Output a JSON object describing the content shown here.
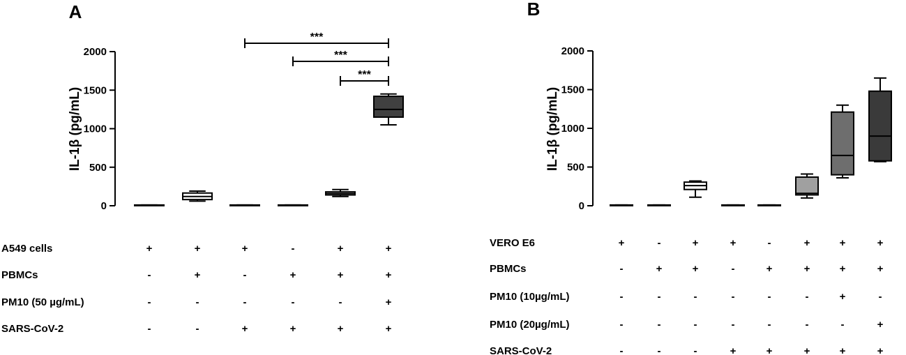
{
  "chart_data": [
    {
      "panel": "A",
      "type": "box",
      "ylabel": "IL-1β (pg/mL)",
      "ylim": [
        0,
        2000
      ],
      "yticks": [
        "0",
        "500",
        "1000",
        "1500",
        "2000"
      ],
      "groups": [
        {
          "min": 5,
          "q1": 5,
          "median": 8,
          "q3": 10,
          "max": 10,
          "fill": "#ffffff"
        },
        {
          "min": 60,
          "q1": 80,
          "median": 120,
          "q3": 165,
          "max": 190,
          "fill": "#ffffff"
        },
        {
          "min": 5,
          "q1": 5,
          "median": 8,
          "q3": 10,
          "max": 10,
          "fill": "#ffffff"
        },
        {
          "min": 5,
          "q1": 5,
          "median": 8,
          "q3": 10,
          "max": 10,
          "fill": "#ffffff"
        },
        {
          "min": 120,
          "q1": 140,
          "median": 160,
          "q3": 180,
          "max": 210,
          "fill": "#ffffff"
        },
        {
          "min": 1050,
          "q1": 1150,
          "median": 1250,
          "q3": 1420,
          "max": 1450,
          "fill": "#404040"
        }
      ],
      "significance": [
        {
          "from": 3,
          "to": 6,
          "label": "***"
        },
        {
          "from": 4,
          "to": 6,
          "label": "***"
        },
        {
          "from": 5,
          "to": 6,
          "label": "***"
        }
      ],
      "conditions": [
        {
          "label": "A549 cells",
          "signs": [
            "+",
            "+",
            "+",
            "-",
            "+",
            "+"
          ]
        },
        {
          "label": "PBMCs",
          "signs": [
            "-",
            "+",
            "-",
            "+",
            "+",
            "+"
          ]
        },
        {
          "label": "PM10 (50 µg/mL)",
          "signs": [
            "-",
            "-",
            "-",
            "-",
            "-",
            "+"
          ]
        },
        {
          "label": "SARS-CoV-2",
          "signs": [
            "-",
            "-",
            "+",
            "+",
            "+",
            "+"
          ]
        }
      ]
    },
    {
      "panel": "B",
      "type": "box",
      "ylabel": "IL-1β (pg/mL)",
      "ylim": [
        0,
        2000
      ],
      "yticks": [
        "0",
        "500",
        "1000",
        "1500",
        "2000"
      ],
      "groups": [
        {
          "min": 5,
          "q1": 5,
          "median": 8,
          "q3": 10,
          "max": 10,
          "fill": "#ffffff"
        },
        {
          "min": 5,
          "q1": 5,
          "median": 8,
          "q3": 10,
          "max": 10,
          "fill": "#ffffff"
        },
        {
          "min": 110,
          "q1": 210,
          "median": 260,
          "q3": 305,
          "max": 320,
          "fill": "#ffffff"
        },
        {
          "min": 5,
          "q1": 5,
          "median": 8,
          "q3": 10,
          "max": 10,
          "fill": "#ffffff"
        },
        {
          "min": 5,
          "q1": 5,
          "median": 8,
          "q3": 10,
          "max": 10,
          "fill": "#ffffff"
        },
        {
          "min": 100,
          "q1": 140,
          "median": 160,
          "q3": 370,
          "max": 410,
          "fill": "#a0a0a0"
        },
        {
          "min": 360,
          "q1": 400,
          "median": 650,
          "q3": 1210,
          "max": 1300,
          "fill": "#6e6e6e"
        },
        {
          "min": 570,
          "q1": 580,
          "median": 900,
          "q3": 1480,
          "max": 1650,
          "fill": "#3a3a3a"
        }
      ],
      "conditions": [
        {
          "label": "VERO E6",
          "signs": [
            "+",
            "-",
            "+",
            "+",
            "-",
            "+",
            "+",
            "+"
          ]
        },
        {
          "label": "PBMCs",
          "signs": [
            "-",
            "+",
            "+",
            "-",
            "+",
            "+",
            "+",
            "+"
          ]
        },
        {
          "label": "PM10 (10µg/mL)",
          "signs": [
            "-",
            "-",
            "-",
            "-",
            "-",
            "-",
            "+",
            "-"
          ]
        },
        {
          "label": "PM10 (20µg/mL)",
          "signs": [
            "-",
            "-",
            "-",
            "-",
            "-",
            "-",
            "-",
            "+"
          ]
        },
        {
          "label": "SARS-CoV-2",
          "signs": [
            "-",
            "-",
            "-",
            "+",
            "+",
            "+",
            "+",
            "+"
          ]
        }
      ]
    }
  ]
}
